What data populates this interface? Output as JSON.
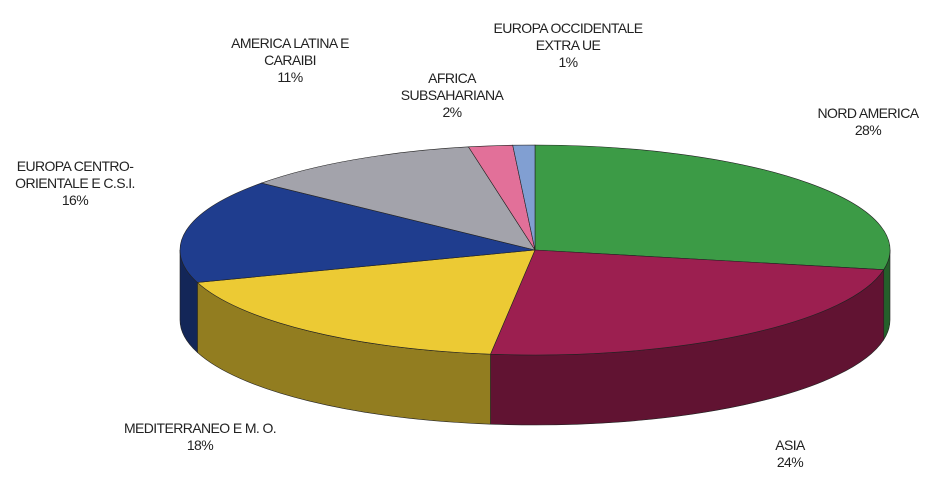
{
  "chart_data": {
    "type": "pie3d",
    "categories": [
      "NORD AMERICA",
      "ASIA",
      "MEDITERRANEO E M. O.",
      "EUROPA CENTRO-ORIENTALE E C.S.I.",
      "AMERICA LATINA E CARAIBI",
      "AFRICA SUBSAHARIANA",
      "EUROPA OCCIDENTALE EXTRA UE"
    ],
    "values": [
      28,
      24,
      18,
      16,
      11,
      2,
      1
    ],
    "value_labels": [
      "28%",
      "24%",
      "18%",
      "16%",
      "11%",
      "2%",
      "1%"
    ],
    "colors": [
      "#3c9b46",
      "#9c1f50",
      "#ecca34",
      "#1f3d8e",
      "#a3a3ab",
      "#e27099",
      "#819fd2"
    ]
  }
}
